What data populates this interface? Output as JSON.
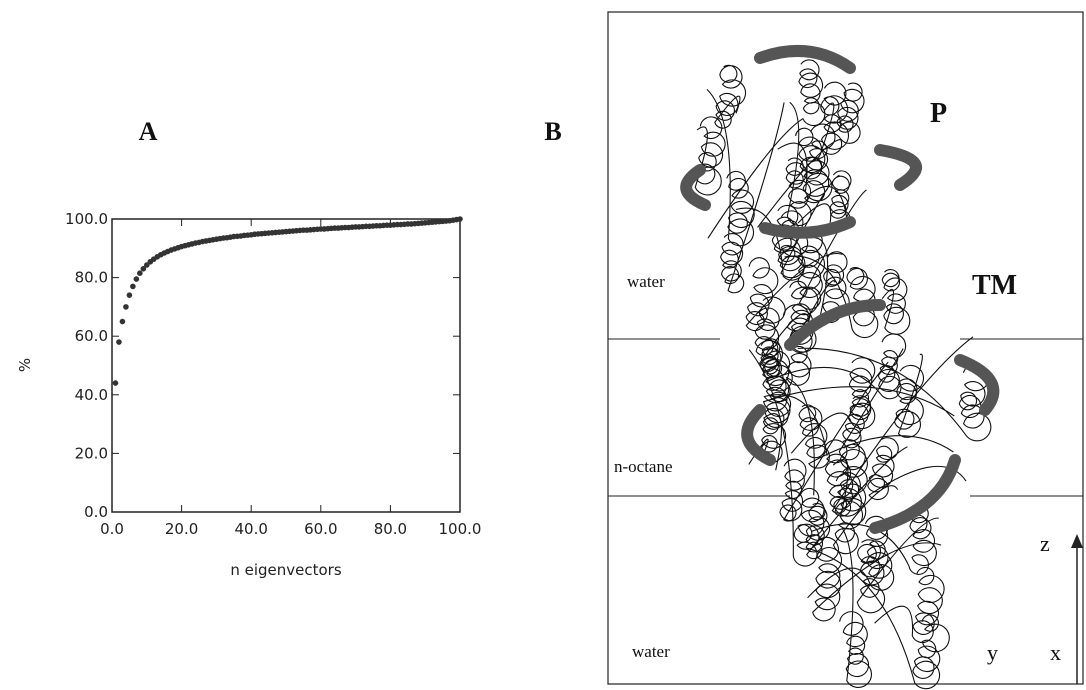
{
  "chart_data": {
    "type": "scatter",
    "panel_label": "A",
    "x_label": "n eigenvectors",
    "y_label": "%",
    "xlim": [
      0,
      100
    ],
    "ylim": [
      0,
      100
    ],
    "xticks": [
      {
        "value": 0,
        "label": "0.0"
      },
      {
        "value": 20,
        "label": "20.0"
      },
      {
        "value": 40,
        "label": "40.0"
      },
      {
        "value": 60,
        "label": "60.0"
      },
      {
        "value": 80,
        "label": "80.0"
      },
      {
        "value": 100,
        "label": "100.0"
      }
    ],
    "yticks": [
      {
        "value": 0,
        "label": "0.0"
      },
      {
        "value": 20,
        "label": "20.0"
      },
      {
        "value": 40,
        "label": "40.0"
      },
      {
        "value": 60,
        "label": "60.0"
      },
      {
        "value": 80,
        "label": "80.0"
      },
      {
        "value": 100,
        "label": "100.0"
      }
    ],
    "color": "#333333",
    "x": [
      1,
      2,
      3,
      4,
      5,
      6,
      7,
      8,
      9,
      10,
      11,
      12,
      13,
      14,
      15,
      16,
      17,
      18,
      19,
      20,
      21,
      22,
      23,
      24,
      25,
      26,
      27,
      28,
      29,
      30,
      31,
      32,
      33,
      34,
      35,
      36,
      37,
      38,
      39,
      40,
      41,
      42,
      43,
      44,
      45,
      46,
      47,
      48,
      49,
      50,
      51,
      52,
      53,
      54,
      55,
      56,
      57,
      58,
      59,
      60,
      61,
      62,
      63,
      64,
      65,
      66,
      67,
      68,
      69,
      70,
      71,
      72,
      73,
      74,
      75,
      76,
      77,
      78,
      79,
      80,
      81,
      82,
      83,
      84,
      85,
      86,
      87,
      88,
      89,
      90,
      91,
      92,
      93,
      94,
      95,
      96,
      97,
      98,
      99,
      100
    ],
    "values": [
      44,
      58,
      65,
      70,
      74,
      77,
      79.5,
      81.5,
      83,
      84.3,
      85.4,
      86.3,
      87.1,
      87.8,
      88.4,
      88.9,
      89.4,
      89.8,
      90.2,
      90.6,
      90.9,
      91.2,
      91.5,
      91.8,
      92.0,
      92.3,
      92.5,
      92.7,
      92.9,
      93.1,
      93.3,
      93.5,
      93.6,
      93.8,
      94.0,
      94.1,
      94.2,
      94.4,
      94.5,
      94.6,
      94.8,
      94.9,
      95.0,
      95.1,
      95.2,
      95.3,
      95.4,
      95.5,
      95.6,
      95.7,
      95.8,
      95.9,
      96.0,
      96.1,
      96.2,
      96.2,
      96.3,
      96.4,
      96.5,
      96.6,
      96.6,
      96.7,
      96.8,
      96.9,
      96.9,
      97.0,
      97.1,
      97.1,
      97.2,
      97.3,
      97.3,
      97.4,
      97.5,
      97.5,
      97.6,
      97.7,
      97.7,
      97.8,
      97.9,
      97.9,
      98.0,
      98.1,
      98.1,
      98.2,
      98.3,
      98.3,
      98.4,
      98.5,
      98.6,
      98.7,
      98.8,
      98.9,
      99.0,
      99.1,
      99.2,
      99.3,
      99.4,
      99.6,
      99.8,
      100.0
    ]
  },
  "panel_b": {
    "label": "B",
    "regions": [
      "P",
      "TM"
    ],
    "layers": [
      "water",
      "n-octane",
      "water"
    ],
    "axes": [
      "z",
      "y",
      "x"
    ]
  }
}
